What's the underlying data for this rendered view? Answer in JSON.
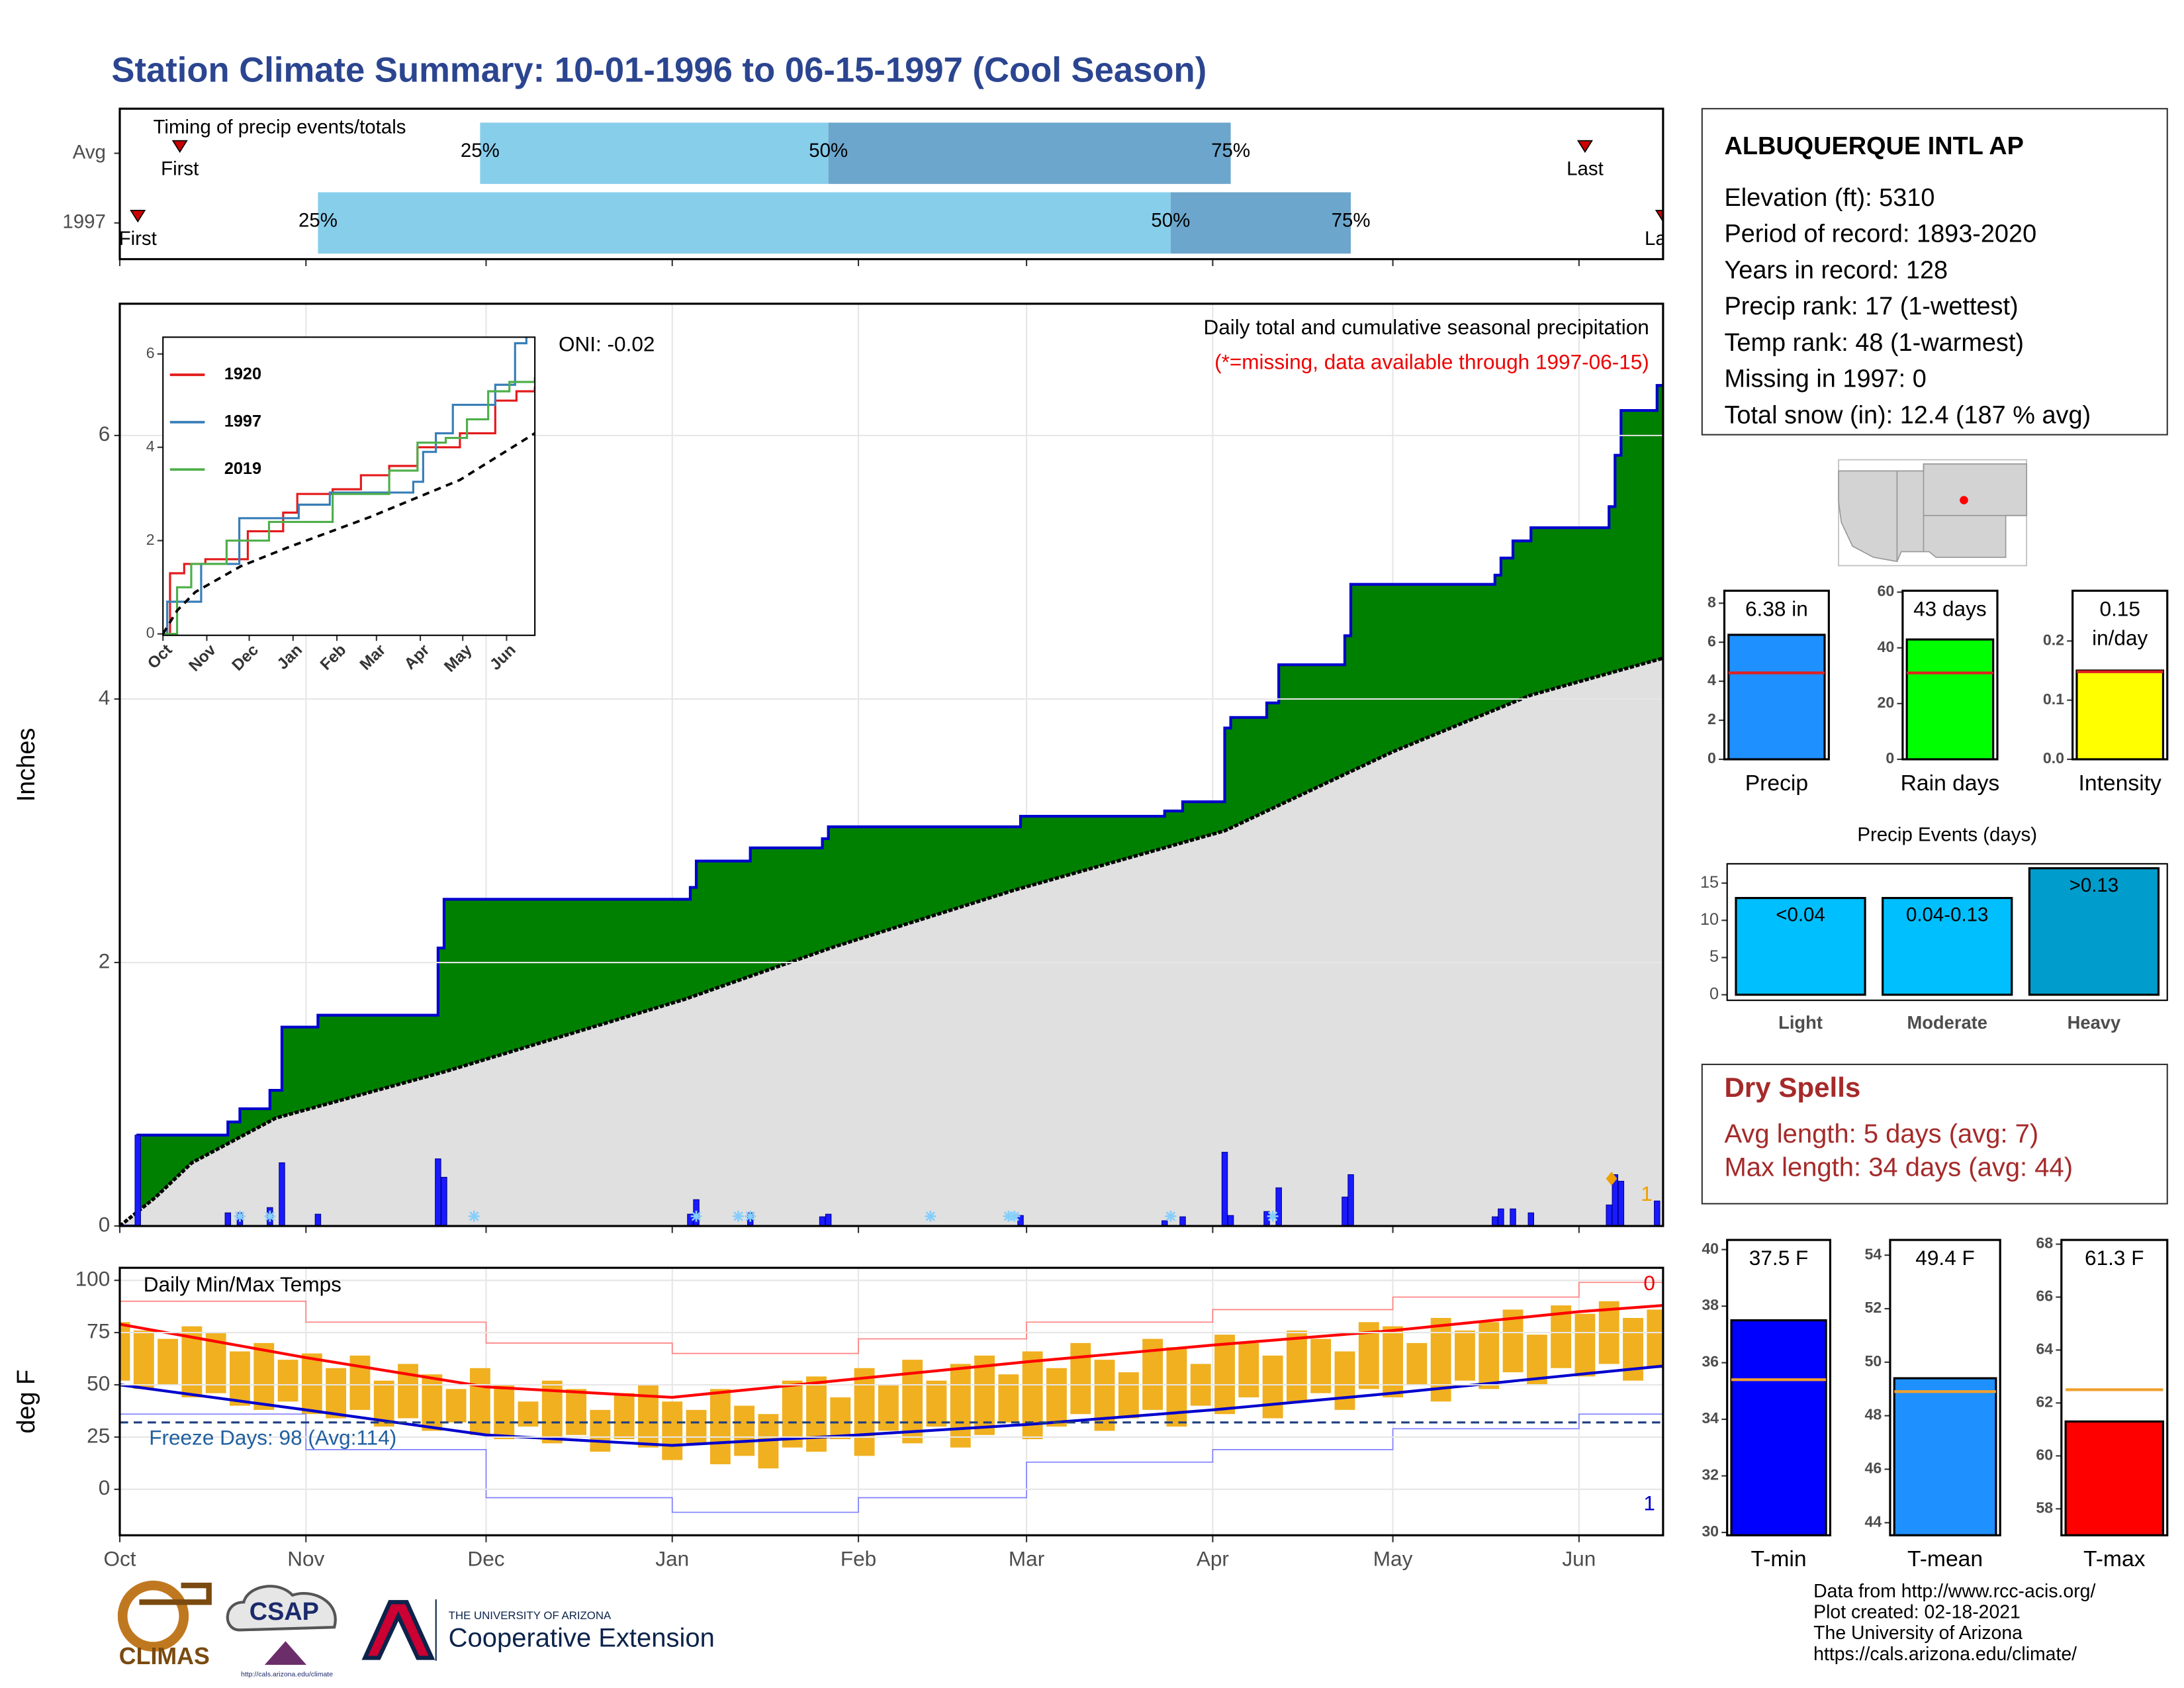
{
  "title": "Station Climate Summary: 10-01-1996 to 06-15-1997 (Cool Season)",
  "chart_data": [
    {
      "type": "timing",
      "title": "Timing of precip events/totals",
      "categories": [
        "Avg",
        "1997"
      ],
      "rows": [
        {
          "first": 10,
          "q25": 60,
          "q50": 118,
          "q75": 185,
          "last": 244
        },
        {
          "first": 3,
          "q25": 33,
          "q50": 175,
          "q75": 205,
          "last": 257
        }
      ],
      "labels": {
        "first": "First",
        "last": "Last",
        "q25": "25%",
        "q50": "50%",
        "q75": "75%"
      },
      "colors": {
        "early": "#87ceeb",
        "late": "#6ca6cd",
        "marker": "#cc0000"
      },
      "xlim": [
        0,
        257
      ],
      "xticks": [
        0,
        31,
        61,
        92,
        123,
        151,
        182,
        212,
        243
      ]
    },
    {
      "type": "cumulative_precip",
      "title": "Daily total and cumulative seasonal precipitation",
      "subtitle": "(*=missing, data available through 1997-06-15)",
      "annotation": "ONI: -0.02",
      "ylabel": "Inches",
      "xlim": [
        0,
        257
      ],
      "ylim": [
        0,
        7
      ],
      "yticks": [
        0,
        2,
        4,
        6
      ],
      "xticks": [
        0,
        31,
        61,
        92,
        123,
        151,
        182,
        212,
        243
      ],
      "grid": true,
      "daily": {
        "x": [
          3,
          18,
          20,
          25,
          27,
          33,
          53,
          54,
          95,
          96,
          105,
          117,
          118,
          150,
          174,
          177,
          184,
          185,
          191,
          193,
          204,
          205,
          229,
          230,
          232,
          235,
          248,
          249,
          250,
          256
        ],
        "values": [
          0.69,
          0.1,
          0.1,
          0.14,
          0.48,
          0.09,
          0.51,
          0.37,
          0.09,
          0.2,
          0.1,
          0.07,
          0.09,
          0.08,
          0.04,
          0.07,
          0.56,
          0.08,
          0.11,
          0.29,
          0.22,
          0.39,
          0.07,
          0.13,
          0.13,
          0.1,
          0.16,
          0.39,
          0.34,
          0.19
        ],
        "color": "#1a1aff"
      },
      "cumulative_color": "#0000cd",
      "cumulative_fill": "#008000",
      "average": {
        "x": [
          0,
          6,
          12,
          26,
          54,
          94,
          119,
          149,
          184,
          212,
          235,
          257
        ],
        "values": [
          0,
          0.22,
          0.48,
          0.82,
          1.17,
          1.72,
          2.12,
          2.55,
          3.0,
          3.6,
          4.03,
          4.31
        ],
        "color": "#000000",
        "fill": "#e0e0e0"
      },
      "snow_x": [
        20,
        25,
        59,
        96,
        103,
        105,
        135,
        148,
        149,
        175,
        192
      ],
      "snow_color": "#87cefa",
      "flag_label": 1,
      "flag_color": "#f0a000"
    },
    {
      "type": "inset_lines",
      "xlim": [
        0,
        263
      ],
      "ylim": [
        -0.03,
        6.36
      ],
      "yticks": [
        0,
        2,
        4,
        6
      ],
      "xticks": [
        {
          "value": 0,
          "label": "Oct"
        },
        {
          "value": 31,
          "label": "Nov"
        },
        {
          "value": 61,
          "label": "Dec"
        },
        {
          "value": 92,
          "label": "Jan"
        },
        {
          "value": 123,
          "label": "Feb"
        },
        {
          "value": 151,
          "label": "Mar"
        },
        {
          "value": 182,
          "label": "Apr"
        },
        {
          "value": 212,
          "label": "May"
        },
        {
          "value": 243,
          "label": "Jun"
        }
      ],
      "step": true,
      "series": [
        {
          "name": "1920",
          "color": "#e41a1c",
          "x": [
            0,
            5,
            15,
            30,
            60,
            85,
            95,
            120,
            140,
            160,
            180,
            210,
            235,
            250,
            263
          ],
          "values": [
            0,
            1.3,
            1.5,
            1.6,
            2.2,
            2.6,
            3.0,
            3.1,
            3.4,
            3.6,
            4.0,
            4.3,
            5.0,
            5.2,
            5.3
          ]
        },
        {
          "name": "1997",
          "color": "#377eb8",
          "x": [
            0,
            3,
            27,
            54,
            96,
            118,
            177,
            184,
            193,
            205,
            235,
            249,
            257,
            263
          ],
          "values": [
            0,
            0.69,
            1.5,
            2.48,
            2.77,
            3.03,
            3.26,
            3.9,
            4.3,
            4.91,
            5.34,
            6.23,
            6.38,
            6.38
          ]
        },
        {
          "name": "2019",
          "color": "#4daf4a",
          "x": [
            0,
            10,
            20,
            45,
            75,
            110,
            120,
            160,
            180,
            200,
            215,
            230,
            245,
            263
          ],
          "values": [
            0,
            1.0,
            1.5,
            2.0,
            2.4,
            2.4,
            3.0,
            3.5,
            4.1,
            4.2,
            4.6,
            5.2,
            5.4,
            5.5
          ]
        },
        {
          "color": "#000000",
          "dash": true,
          "x": [
            0,
            10,
            23,
            55,
            88,
            146,
            210,
            263
          ],
          "values": [
            0,
            0.5,
            0.9,
            1.45,
            1.85,
            2.5,
            3.3,
            4.3
          ]
        }
      ]
    },
    {
      "type": "temps",
      "title": "Daily Min/Max Temps",
      "ylabel": "deg F",
      "xlim": [
        0,
        257
      ],
      "ylim": [
        -22,
        106
      ],
      "yticks": [
        0,
        25,
        50,
        75,
        100
      ],
      "grid": true,
      "xticks": [
        {
          "value": 0,
          "label": "Oct"
        },
        {
          "value": 31,
          "label": "Nov"
        },
        {
          "value": 61,
          "label": "Dec"
        },
        {
          "value": 92,
          "label": "Jan"
        },
        {
          "value": 123,
          "label": "Feb"
        },
        {
          "value": 151,
          "label": "Mar"
        },
        {
          "value": 182,
          "label": "Apr"
        },
        {
          "value": 212,
          "label": "May"
        },
        {
          "value": 243,
          "label": "Jun"
        }
      ],
      "daily": {
        "x": [
          0,
          4,
          8,
          12,
          16,
          20,
          24,
          28,
          32,
          36,
          40,
          44,
          48,
          52,
          56,
          60,
          64,
          68,
          72,
          76,
          80,
          84,
          88,
          92,
          96,
          100,
          104,
          108,
          112,
          116,
          120,
          124,
          128,
          132,
          136,
          140,
          144,
          148,
          152,
          156,
          160,
          164,
          168,
          172,
          176,
          180,
          184,
          188,
          192,
          196,
          200,
          204,
          208,
          212,
          216,
          220,
          224,
          228,
          232,
          236,
          240,
          244,
          248,
          252,
          256
        ],
        "low": [
          52,
          48,
          50,
          44,
          46,
          40,
          38,
          42,
          36,
          34,
          38,
          30,
          34,
          28,
          32,
          26,
          24,
          30,
          22,
          26,
          18,
          24,
          20,
          14,
          22,
          12,
          16,
          10,
          20,
          18,
          24,
          16,
          28,
          22,
          30,
          20,
          26,
          32,
          24,
          30,
          36,
          28,
          34,
          38,
          30,
          40,
          36,
          44,
          34,
          42,
          46,
          38,
          48,
          44,
          50,
          42,
          52,
          48,
          56,
          50,
          58,
          54,
          60,
          52,
          58
        ],
        "high": [
          80,
          76,
          72,
          78,
          75,
          66,
          70,
          62,
          65,
          58,
          64,
          52,
          60,
          55,
          48,
          58,
          50,
          42,
          52,
          48,
          38,
          46,
          50,
          42,
          38,
          48,
          40,
          36,
          52,
          54,
          44,
          58,
          50,
          62,
          52,
          60,
          64,
          55,
          66,
          58,
          70,
          62,
          56,
          72,
          68,
          60,
          74,
          70,
          64,
          76,
          72,
          66,
          80,
          78,
          70,
          82,
          76,
          80,
          86,
          74,
          88,
          84,
          90,
          82,
          86
        ],
        "color": "#f0b020"
      },
      "normal": {
        "x": [
          0,
          31,
          61,
          92,
          123,
          151,
          182,
          212,
          243,
          257
        ],
        "high": [
          79,
          63,
          49,
          44,
          53,
          61,
          69,
          76,
          85,
          88
        ],
        "low": [
          50,
          38,
          26,
          21,
          26,
          31,
          38,
          46,
          55,
          59
        ],
        "high_color": "#ff0000",
        "low_color": "#0000cd"
      },
      "record": {
        "x": [
          0,
          31,
          61,
          92,
          123,
          151,
          182,
          212,
          243,
          257
        ],
        "high": [
          90,
          80,
          70,
          65,
          72,
          80,
          86,
          92,
          99,
          100
        ],
        "low": [
          36,
          19,
          -4,
          -11,
          -4,
          13,
          19,
          29,
          36,
          43
        ],
        "high_color": "#ff8080",
        "low_color": "#8080ff"
      },
      "freeze_line": 32,
      "freeze_label": "Freeze Days: 98 (Avg:114)",
      "record_high_count": 0,
      "record_low_count": 1
    },
    {
      "type": "summary_bar",
      "categories": [
        "Precip"
      ],
      "values": [
        6.38
      ],
      "value_labels": [
        "6.38 in"
      ],
      "average": 4.43,
      "color": "#1e90ff",
      "average_color": "#e02020",
      "ylim": [
        0,
        8.64
      ],
      "yticks": [
        0,
        2,
        4,
        6,
        8
      ]
    },
    {
      "type": "summary_bar",
      "categories": [
        "Rain days"
      ],
      "values": [
        43
      ],
      "value_labels": [
        "43 days"
      ],
      "average": 31,
      "color": "#00ff00",
      "average_color": "#e02020",
      "ylim": [
        0,
        60.5
      ],
      "yticks": [
        0,
        20,
        40,
        60
      ]
    },
    {
      "type": "summary_bar",
      "categories": [
        "Intensity"
      ],
      "values": [
        0.15
      ],
      "value_labels": [
        "0.15 in/day"
      ],
      "average": 0.148,
      "color": "#ffff00",
      "average_color": "#e02020",
      "ylim": [
        0,
        0.285
      ],
      "yticks": [
        {
          "value": 0,
          "label": "0.0"
        },
        0.1,
        0.2
      ]
    },
    {
      "type": "events_bar",
      "title": "Precip Events (days)",
      "categories": [
        "Light",
        "Moderate",
        "Heavy"
      ],
      "values": [
        13,
        13,
        17
      ],
      "bin_labels": [
        "<0.04",
        "0.04-0.13",
        ">0.13"
      ],
      "colors": [
        "#00bfff",
        "#00bfff",
        "#009ccc"
      ],
      "ylim": [
        -0.75,
        17.6
      ],
      "yticks": [
        0,
        5,
        10,
        15
      ]
    },
    {
      "type": "summary_bar",
      "categories": [
        "T-min"
      ],
      "values": [
        37.5
      ],
      "value_labels": [
        "37.5 F"
      ],
      "average": 35.4,
      "color": "#0000ff",
      "average_color": "#f0a030",
      "ylim": [
        29.9,
        40.34
      ],
      "yticks": [
        30,
        32,
        34,
        36,
        38,
        40
      ]
    },
    {
      "type": "summary_bar",
      "categories": [
        "T-mean"
      ],
      "values": [
        49.4
      ],
      "value_labels": [
        "49.4 F"
      ],
      "average": 48.9,
      "color": "#1e90ff",
      "average_color": "#f0a030",
      "ylim": [
        43.53,
        54.57
      ],
      "yticks": [
        44,
        46,
        48,
        50,
        52,
        54
      ]
    },
    {
      "type": "summary_bar",
      "categories": [
        "T-max"
      ],
      "values": [
        61.3
      ],
      "value_labels": [
        "61.3 F"
      ],
      "average": 62.5,
      "color": "#ff0000",
      "average_color": "#f0a030",
      "ylim": [
        57.0,
        68.16
      ],
      "yticks": [
        58,
        60,
        62,
        64,
        66,
        68
      ]
    }
  ],
  "station": {
    "name": "ALBUQUERQUE INTL AP",
    "lines": [
      "Elevation (ft): 5310",
      "Period of record: 1893-2020",
      "Years in record: 128",
      "Precip rank: 17 (1-wettest)",
      "Temp rank: 48 (1-warmest)",
      "Missing in 1997: 0",
      "Total snow (in): 12.4 (187 % avg)"
    ]
  },
  "dry_spells": {
    "title": "Dry Spells",
    "lines": [
      "Avg length: 5 days (avg: 7)",
      "Max length: 34 days (avg: 44)"
    ]
  },
  "footer": {
    "lines": [
      "Data from http://www.rcc-acis.org/",
      "Plot created: 02-18-2021",
      "The University of Arizona",
      "https://cals.arizona.edu/climate/"
    ]
  },
  "logos": {
    "climas": "CLIMAS",
    "csap": "CSAP",
    "csap_url": "http://cals.arizona.edu/climate",
    "university": "THE UNIVERSITY OF ARIZONA",
    "extension": "Cooperative Extension"
  }
}
